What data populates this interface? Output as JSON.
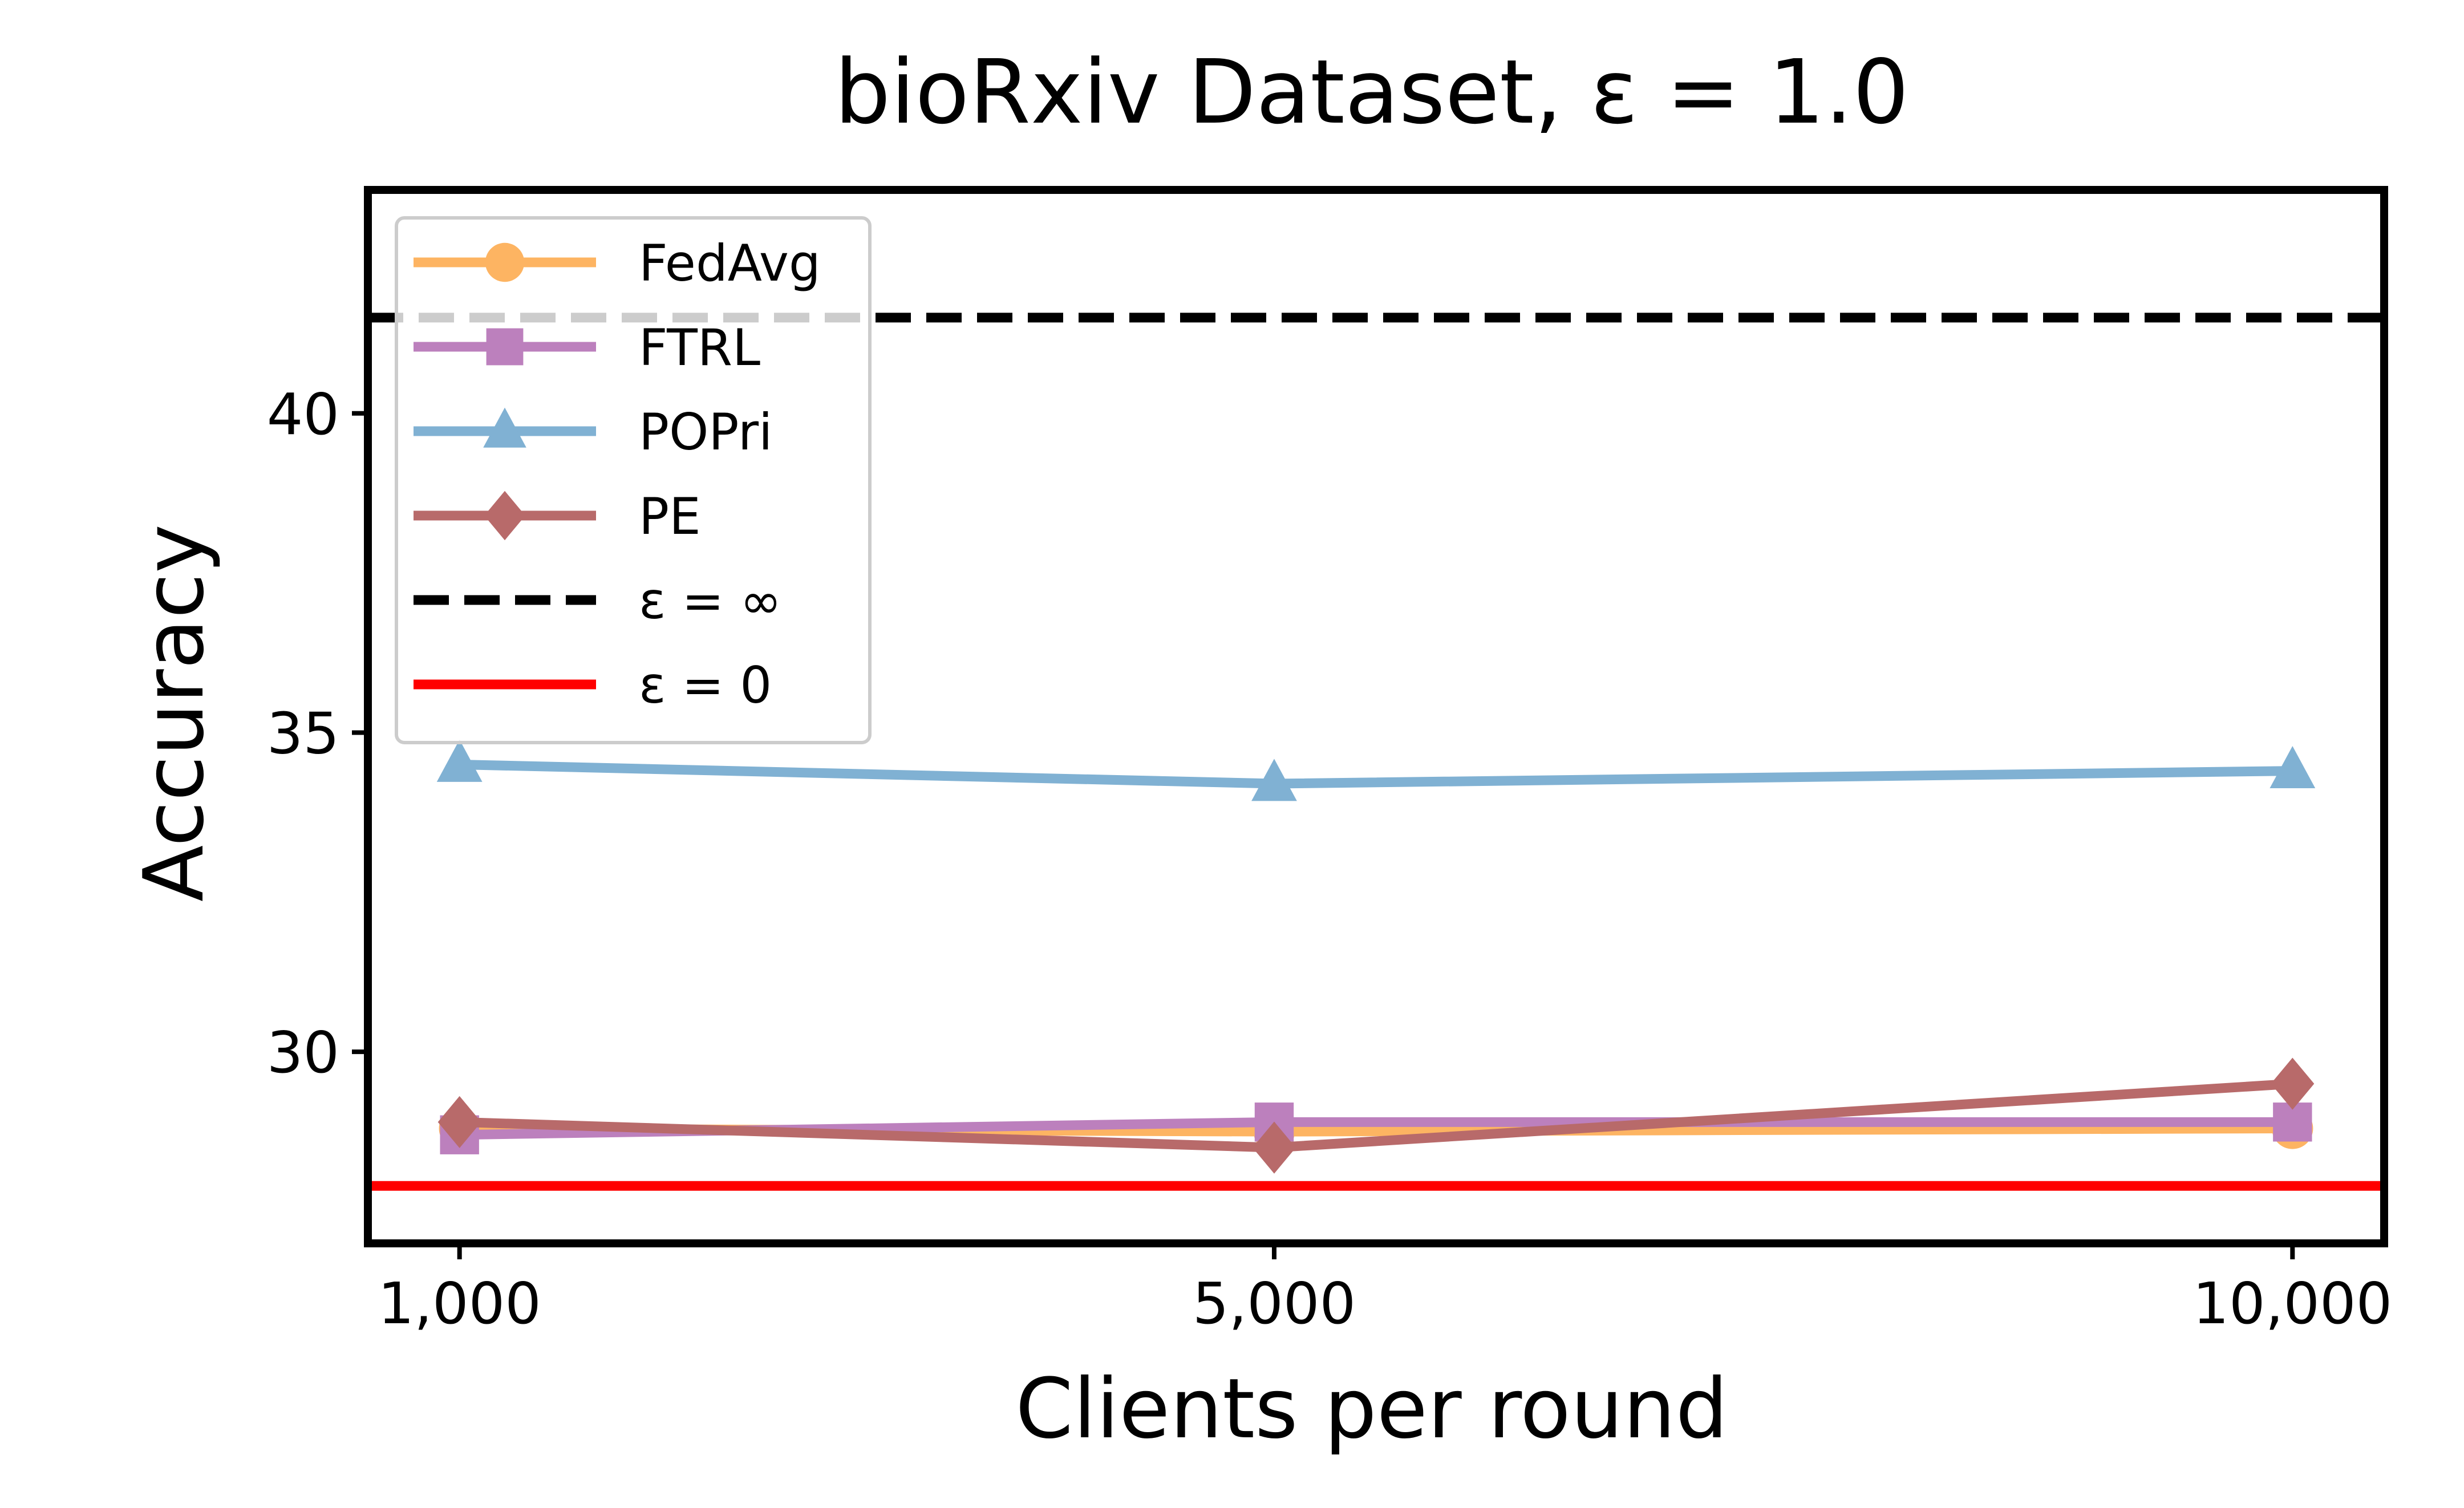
{
  "chart_data": {
    "type": "line",
    "title": "bioRxiv Dataset, ε = 1.0",
    "xlabel": "Clients per round",
    "ylabel": "Accuracy",
    "x": [
      1000,
      5000,
      10000
    ],
    "x_tick_labels": [
      "1,000",
      "5,000",
      "10,000"
    ],
    "y_ticks": [
      30,
      35,
      40
    ],
    "y_tick_labels": [
      "30",
      "35",
      "40"
    ],
    "xlim": [
      550,
      10450
    ],
    "ylim": [
      27.0,
      43.5
    ],
    "grid": false,
    "legend_position": "upper-left",
    "series": [
      {
        "name": "FedAvg",
        "values": [
          28.8,
          28.75,
          28.8
        ],
        "color": "#fdb462",
        "marker": "circle"
      },
      {
        "name": "FTRL",
        "values": [
          28.7,
          28.9,
          28.9
        ],
        "color": "#bc80bd",
        "marker": "square"
      },
      {
        "name": "POPri",
        "values": [
          34.5,
          34.2,
          34.4
        ],
        "color": "#80b1d3",
        "marker": "triangle"
      },
      {
        "name": "PE",
        "values": [
          28.9,
          28.5,
          29.5
        ],
        "color": "#b86a6a",
        "marker": "diamond"
      }
    ],
    "reference_lines": [
      {
        "name": "ε = ∞",
        "value": 41.5,
        "color": "#000000",
        "style": "dashed"
      },
      {
        "name": "ε = 0",
        "value": 27.9,
        "color": "#ff0000",
        "style": "solid"
      }
    ]
  }
}
